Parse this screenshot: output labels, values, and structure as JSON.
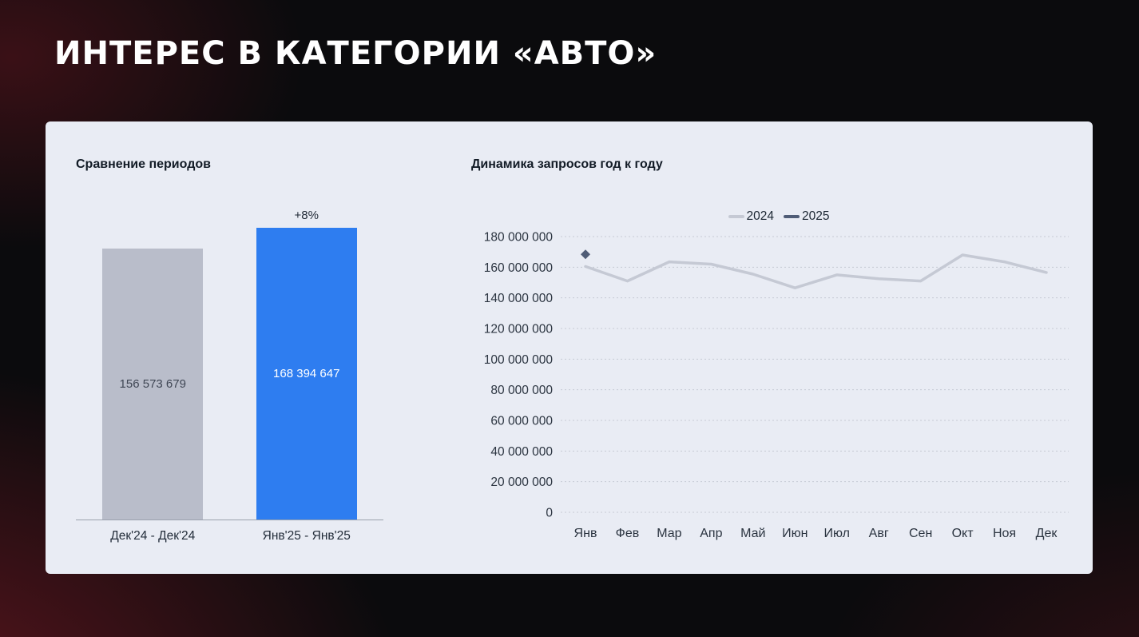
{
  "page": {
    "title": "ИНТЕРЕС В КАТЕГОРИИ «АВТО»"
  },
  "colors": {
    "slide_background": "#0b0b0d",
    "accent_glow": "#a11e2c",
    "card_background": "#e9ecf4",
    "bar_gray": "#b9bdca",
    "bar_blue": "#2e7df0",
    "line_2024": "#c5c9d4",
    "line_2025": "#4f5c76",
    "axis_text": "#2b3440",
    "title_text": "#ffffff"
  },
  "chart_data": [
    {
      "type": "bar",
      "title": "Сравнение периодов",
      "categories": [
        "Дек'24 - Дек'24",
        "Янв'25 - Янв'25"
      ],
      "values": [
        156573679,
        168394647
      ],
      "value_labels": [
        "156 573 679",
        "168 394 647"
      ],
      "annotations": [
        "",
        "+8%"
      ],
      "bar_colors": [
        "#b9bdca",
        "#2e7df0"
      ],
      "value_label_colors": [
        "#3f4654",
        "#ffffff"
      ]
    },
    {
      "type": "line",
      "title": "Динамика запросов год к году",
      "categories": [
        "Янв",
        "Фев",
        "Мар",
        "Апр",
        "Май",
        "Июн",
        "Июл",
        "Авг",
        "Сен",
        "Окт",
        "Ноя",
        "Дек"
      ],
      "series": [
        {
          "name": "2024",
          "color": "#c5c9d4",
          "marker": "none",
          "values": [
            160500000,
            151000000,
            163500000,
            162000000,
            155500000,
            146500000,
            155000000,
            152500000,
            151000000,
            168000000,
            163500000,
            156573679
          ]
        },
        {
          "name": "2025",
          "color": "#4f5c76",
          "marker": "diamond",
          "values": [
            168394647,
            null,
            null,
            null,
            null,
            null,
            null,
            null,
            null,
            null,
            null,
            null
          ]
        }
      ],
      "y_ticks": [
        "180 000 000",
        "160 000 000",
        "140 000 000",
        "120 000 000",
        "100 000 000",
        "80 000 000",
        "60 000 000",
        "40 000 000",
        "20 000 000",
        "0"
      ],
      "ylim": [
        0,
        180000000
      ],
      "grid": true,
      "legend_position": "top-center"
    }
  ]
}
